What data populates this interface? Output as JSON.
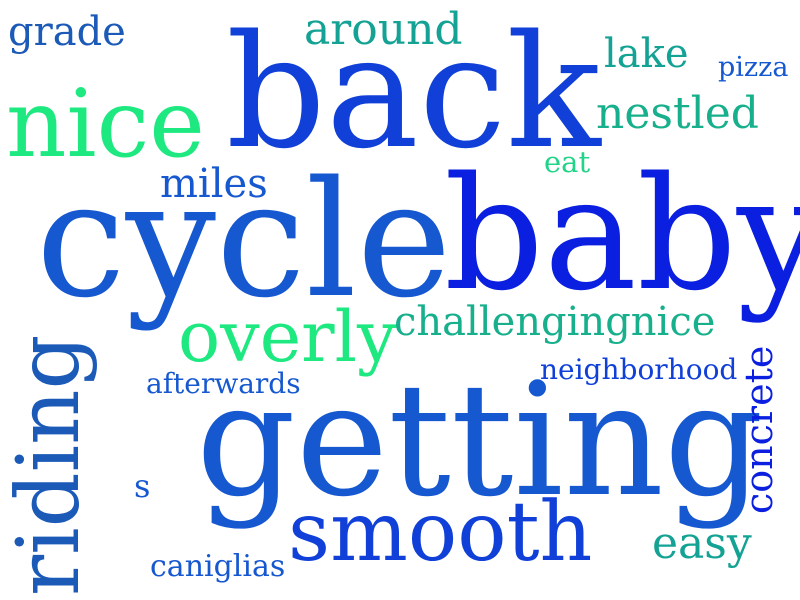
{
  "palette": {
    "blue_deep": "#0a1fe0",
    "blue": "#1040d8",
    "blue_mid": "#1658d0",
    "blue_steel": "#1c5ab8",
    "blue_dark": "#12489e",
    "teal": "#14a294",
    "teal_light": "#18b08c",
    "green": "#1ee880",
    "green_mid": "#22d488"
  },
  "words": [
    {
      "key": "grade",
      "text": "grade"
    },
    {
      "key": "around",
      "text": "around"
    },
    {
      "key": "lake",
      "text": "lake"
    },
    {
      "key": "pizza",
      "text": "pizza"
    },
    {
      "key": "nice",
      "text": "nice"
    },
    {
      "key": "back",
      "text": "back"
    },
    {
      "key": "nestled",
      "text": "nestled"
    },
    {
      "key": "eat",
      "text": "eat"
    },
    {
      "key": "miles",
      "text": "miles"
    },
    {
      "key": "cycle",
      "text": "cycle"
    },
    {
      "key": "baby",
      "text": "baby"
    },
    {
      "key": "overly",
      "text": "overly"
    },
    {
      "key": "challengingnice",
      "text": "challengingnice"
    },
    {
      "key": "afterwards",
      "text": "afterwards"
    },
    {
      "key": "neighborhood",
      "text": "neighborhood"
    },
    {
      "key": "getting",
      "text": "getting"
    },
    {
      "key": "concrete",
      "text": "concrete"
    },
    {
      "key": "riding",
      "text": "riding"
    },
    {
      "key": "s",
      "text": "s"
    },
    {
      "key": "smooth",
      "text": "smooth"
    },
    {
      "key": "easy",
      "text": "easy"
    },
    {
      "key": "caniglias",
      "text": "caniglias"
    }
  ]
}
